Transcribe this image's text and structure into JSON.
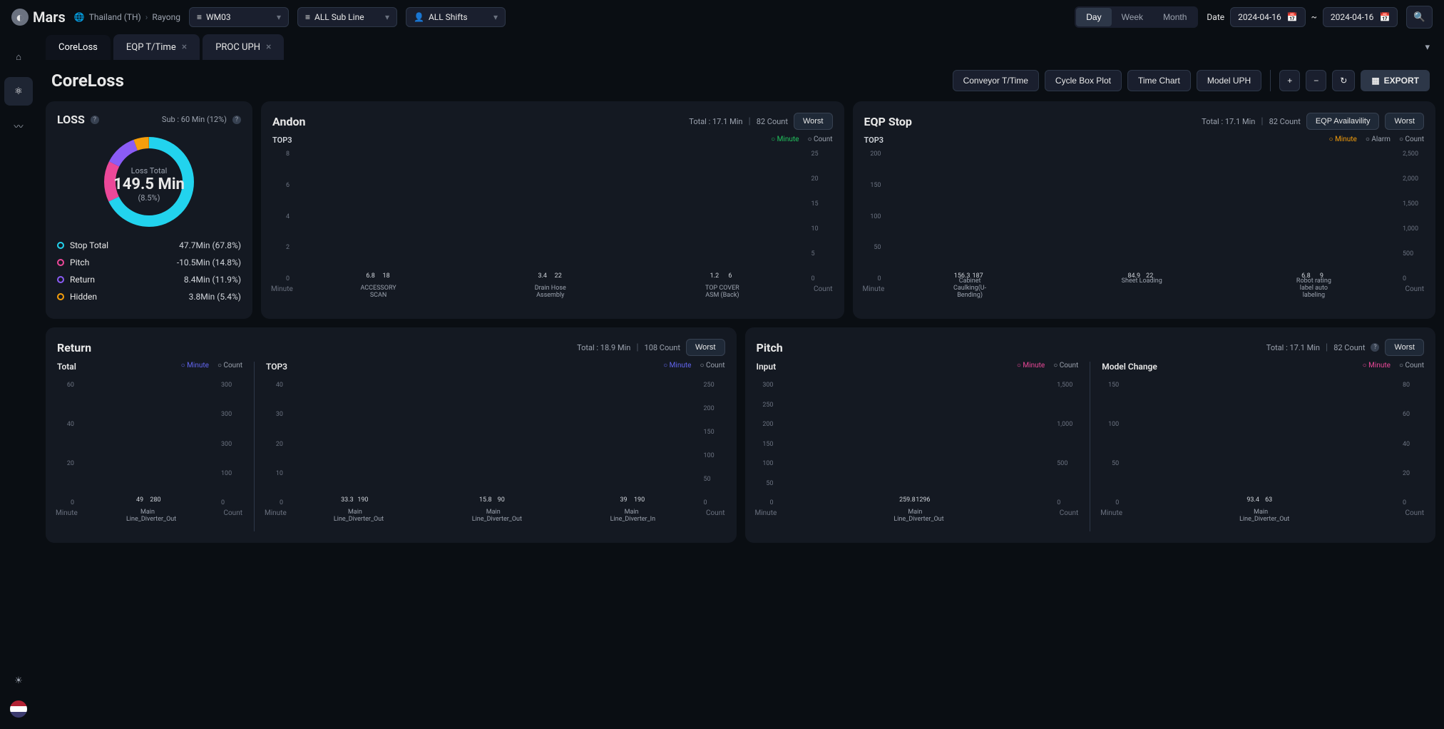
{
  "brand": "Mars",
  "breadcrumb": {
    "country": "Thailand (TH)",
    "site": "Rayong"
  },
  "selectors": {
    "line": "WM03",
    "subline": "ALL Sub Line",
    "shift": "ALL Shifts"
  },
  "view_toggle": {
    "day": "Day",
    "week": "Week",
    "month": "Month",
    "active": "Day"
  },
  "date": {
    "label": "Date",
    "from": "2024-04-16",
    "to": "2024-04-16"
  },
  "tabs": [
    {
      "label": "CoreLoss",
      "active": true,
      "closable": false
    },
    {
      "label": "EQP T/Time",
      "active": false,
      "closable": true
    },
    {
      "label": "PROC UPH",
      "active": false,
      "closable": true
    }
  ],
  "page_title": "CoreLoss",
  "header_buttons": {
    "b1": "Conveyor T/Time",
    "b2": "Cycle Box Plot",
    "b3": "Time Chart",
    "b4": "Model UPH",
    "export": "EXPORT"
  },
  "loss": {
    "title": "LOSS",
    "sub": "Sub : 60 Min (12%)",
    "center_label": "Loss Total",
    "center_value": "149.5 Min",
    "center_pct": "(8.5%)",
    "donut": {
      "segments": [
        {
          "pct": 67.8,
          "color": "#22d3ee"
        },
        {
          "pct": 14.8,
          "color": "#ec4899"
        },
        {
          "pct": 11.9,
          "color": "#8b5cf6"
        },
        {
          "pct": 5.4,
          "color": "#f59e0b"
        }
      ]
    },
    "items": [
      {
        "name": "Stop Total",
        "value": "47.7Min (67.8%)",
        "color": "#22d3ee"
      },
      {
        "name": "Pitch",
        "value": "-10.5Min (14.8%)",
        "color": "#ec4899"
      },
      {
        "name": "Return",
        "value": "8.4Min (11.9%)",
        "color": "#8b5cf6"
      },
      {
        "name": "Hidden",
        "value": "3.8Min (5.4%)",
        "color": "#f59e0b"
      }
    ]
  },
  "andon": {
    "title": "Andon",
    "total": "Total : 17.1 Min",
    "count": "82 Count",
    "worst": "Worst",
    "top3": "TOP3",
    "legend": {
      "a": "Minute",
      "b": "Count"
    },
    "y_left": {
      "max": 8,
      "ticks": [
        "8",
        "6",
        "4",
        "2",
        "0"
      ],
      "label": "Minute"
    },
    "y_right": {
      "max": 25,
      "ticks": [
        "25",
        "20",
        "15",
        "10",
        "5",
        "0"
      ],
      "label": "Count"
    },
    "bars": [
      {
        "x": "ACCESSORY SCAN",
        "minute": 6.8,
        "count": 18,
        "c1": "#22c55e",
        "c2": "#9ca3af"
      },
      {
        "x": "Drain Hose Assembly",
        "minute": 3.4,
        "count": 22,
        "c1": "#22c55e",
        "c2": "#9ca3af"
      },
      {
        "x": "TOP COVER ASM (Back)",
        "minute": 1.2,
        "count": 6,
        "c1": "#22c55e",
        "c2": "#9ca3af"
      }
    ]
  },
  "eqp_stop": {
    "title": "EQP Stop",
    "total": "Total : 17.1 Min",
    "count": "82 Count",
    "avail_btn": "EQP Availavility",
    "worst": "Worst",
    "top3": "TOP3",
    "legend": {
      "a": "Minute",
      "b": "Alarm",
      "c": "Count"
    },
    "y_left": {
      "max": 200,
      "ticks": [
        "200",
        "150",
        "100",
        "50",
        "0"
      ],
      "label": "Minute"
    },
    "y_right": {
      "max": 2500,
      "ticks": [
        "2,500",
        "2,000",
        "1,500",
        "1,000",
        "500",
        "0"
      ],
      "label": "Count"
    },
    "bars": [
      {
        "x": "Cabinet Caulking(U-Bending)",
        "minute": 156.3,
        "count": 187,
        "c1": "#f59e0b",
        "c2": "#9ca3af"
      },
      {
        "x": "Sheet Loading",
        "minute": 84.9,
        "count": 22,
        "c1": "#f59e0b",
        "c2": "#9ca3af"
      },
      {
        "x": "Robot rating label auto labeling",
        "minute": 6.8,
        "count": 9,
        "c1": "#f59e0b",
        "c2": "#9ca3af"
      }
    ]
  },
  "return": {
    "title": "Return",
    "total": "Total : 18.9 Min",
    "count": "108 Count",
    "worst": "Worst",
    "total_label": "Total",
    "top3": "TOP3",
    "legend": {
      "a": "Minute",
      "b": "Count"
    },
    "y_left": {
      "max": 60,
      "ticks": [
        "60",
        "40",
        "20",
        "0"
      ],
      "label": "Minute"
    },
    "y_right": {
      "max": 300,
      "ticks": [
        "300",
        "300",
        "300",
        "100",
        "0"
      ],
      "label": "Count"
    },
    "total_bars": [
      {
        "x": "Main Line_Diverter_Out",
        "minute": 49.0,
        "count": 280,
        "c1": "#6366f1",
        "c2": "#9ca3af"
      }
    ],
    "top3_yl": {
      "max": 40,
      "ticks": [
        "40",
        "30",
        "20",
        "10",
        "0"
      ],
      "label": "Minute"
    },
    "top3_yr": {
      "max": 250,
      "ticks": [
        "250",
        "200",
        "150",
        "100",
        "50",
        "0"
      ],
      "label": "Count"
    },
    "top3_bars": [
      {
        "x": "Main Line_Diverter_Out",
        "minute": 33.3,
        "count": 190,
        "c1": "#6366f1",
        "c2": "#9ca3af"
      },
      {
        "x": "Main Line_Diverter_Out",
        "minute": 15.8,
        "count": 90,
        "c1": "#6366f1",
        "c2": "#9ca3af"
      },
      {
        "x": "Main Line_Diverter_In",
        "minute": 39,
        "count": 190,
        "c1": "#6366f1",
        "c2": "#9ca3af"
      }
    ]
  },
  "pitch": {
    "title": "Pitch",
    "total": "Total : 17.1 Min",
    "count": "82 Count",
    "worst": "Worst",
    "input_label": "Input",
    "model_label": "Model Change",
    "legend": {
      "a": "Minute",
      "b": "Count"
    },
    "input_yl": {
      "max": 300,
      "ticks": [
        "300",
        "250",
        "200",
        "150",
        "100",
        "50",
        "0"
      ],
      "label": "Minute"
    },
    "input_yr": {
      "max": 1500,
      "ticks": [
        "1,500",
        "1,000",
        "500",
        "0"
      ],
      "label": "Count"
    },
    "input_bars": [
      {
        "x": "Main Line_Diverter_Out",
        "minute": 259.8,
        "count": 1296,
        "c1": "#ec4899",
        "c2": "#9ca3af"
      }
    ],
    "model_yl": {
      "max": 150,
      "ticks": [
        "150",
        "100",
        "50",
        "0"
      ],
      "label": "Minute"
    },
    "model_yr": {
      "max": 80,
      "ticks": [
        "80",
        "60",
        "40",
        "20",
        "0"
      ],
      "label": "Count"
    },
    "model_bars": [
      {
        "x": "Main Line_Diverter_Out",
        "minute": 93.4,
        "count": 63,
        "c1": "#ec4899",
        "c2": "#9ca3af"
      }
    ]
  }
}
